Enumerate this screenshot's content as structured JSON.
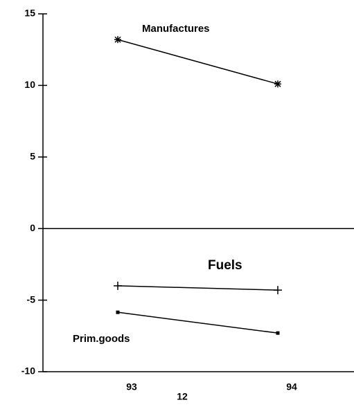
{
  "chart_data": {
    "type": "line",
    "categories": [
      "93",
      "94"
    ],
    "series": [
      {
        "name": "Manufactures",
        "color": "#000000",
        "marker": "star",
        "values": [
          13.2,
          10.1
        ]
      },
      {
        "name": "Fuels",
        "color": "#000000",
        "marker": "plus",
        "values": [
          -4.0,
          -4.3
        ]
      },
      {
        "name": "Prim.goods",
        "color": "#000000",
        "marker": "square",
        "values": [
          -5.85,
          -7.3
        ]
      }
    ],
    "ylim": [
      -10,
      15
    ],
    "yticks": [
      -10,
      -5,
      0,
      5,
      10,
      15
    ],
    "zero_line": true,
    "page_number": "12"
  }
}
